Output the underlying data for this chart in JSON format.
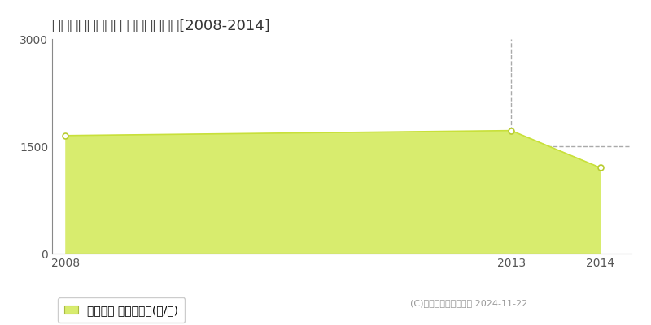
{
  "title": "雄勝郡羽後町糠塚 農地価格推移[2008-2014]",
  "years": [
    2008,
    2013,
    2014
  ],
  "values": [
    1650,
    1720,
    1200
  ],
  "line_color": "#c8e03a",
  "fill_color": "#d8ec6e",
  "marker_color": "#ffffff",
  "marker_edge_color": "#b8cc30",
  "vline_year": 2013,
  "vline_color": "#aaaaaa",
  "hline_value": 1500,
  "hline_color": "#aaaaaa",
  "ylim": [
    0,
    3000
  ],
  "xlim_start": 2008,
  "xlim_end": 2014,
  "yticks": [
    0,
    1500,
    3000
  ],
  "xticks": [
    2008,
    2013,
    2014
  ],
  "legend_label": "農地価格 平均坪単価(円/坪)",
  "copyright_text": "(C)土地価格ドットコム 2024-11-22",
  "bg_color": "#ffffff",
  "plot_bg_color": "#ffffff",
  "title_fontsize": 13,
  "tick_fontsize": 10,
  "legend_fontsize": 10
}
